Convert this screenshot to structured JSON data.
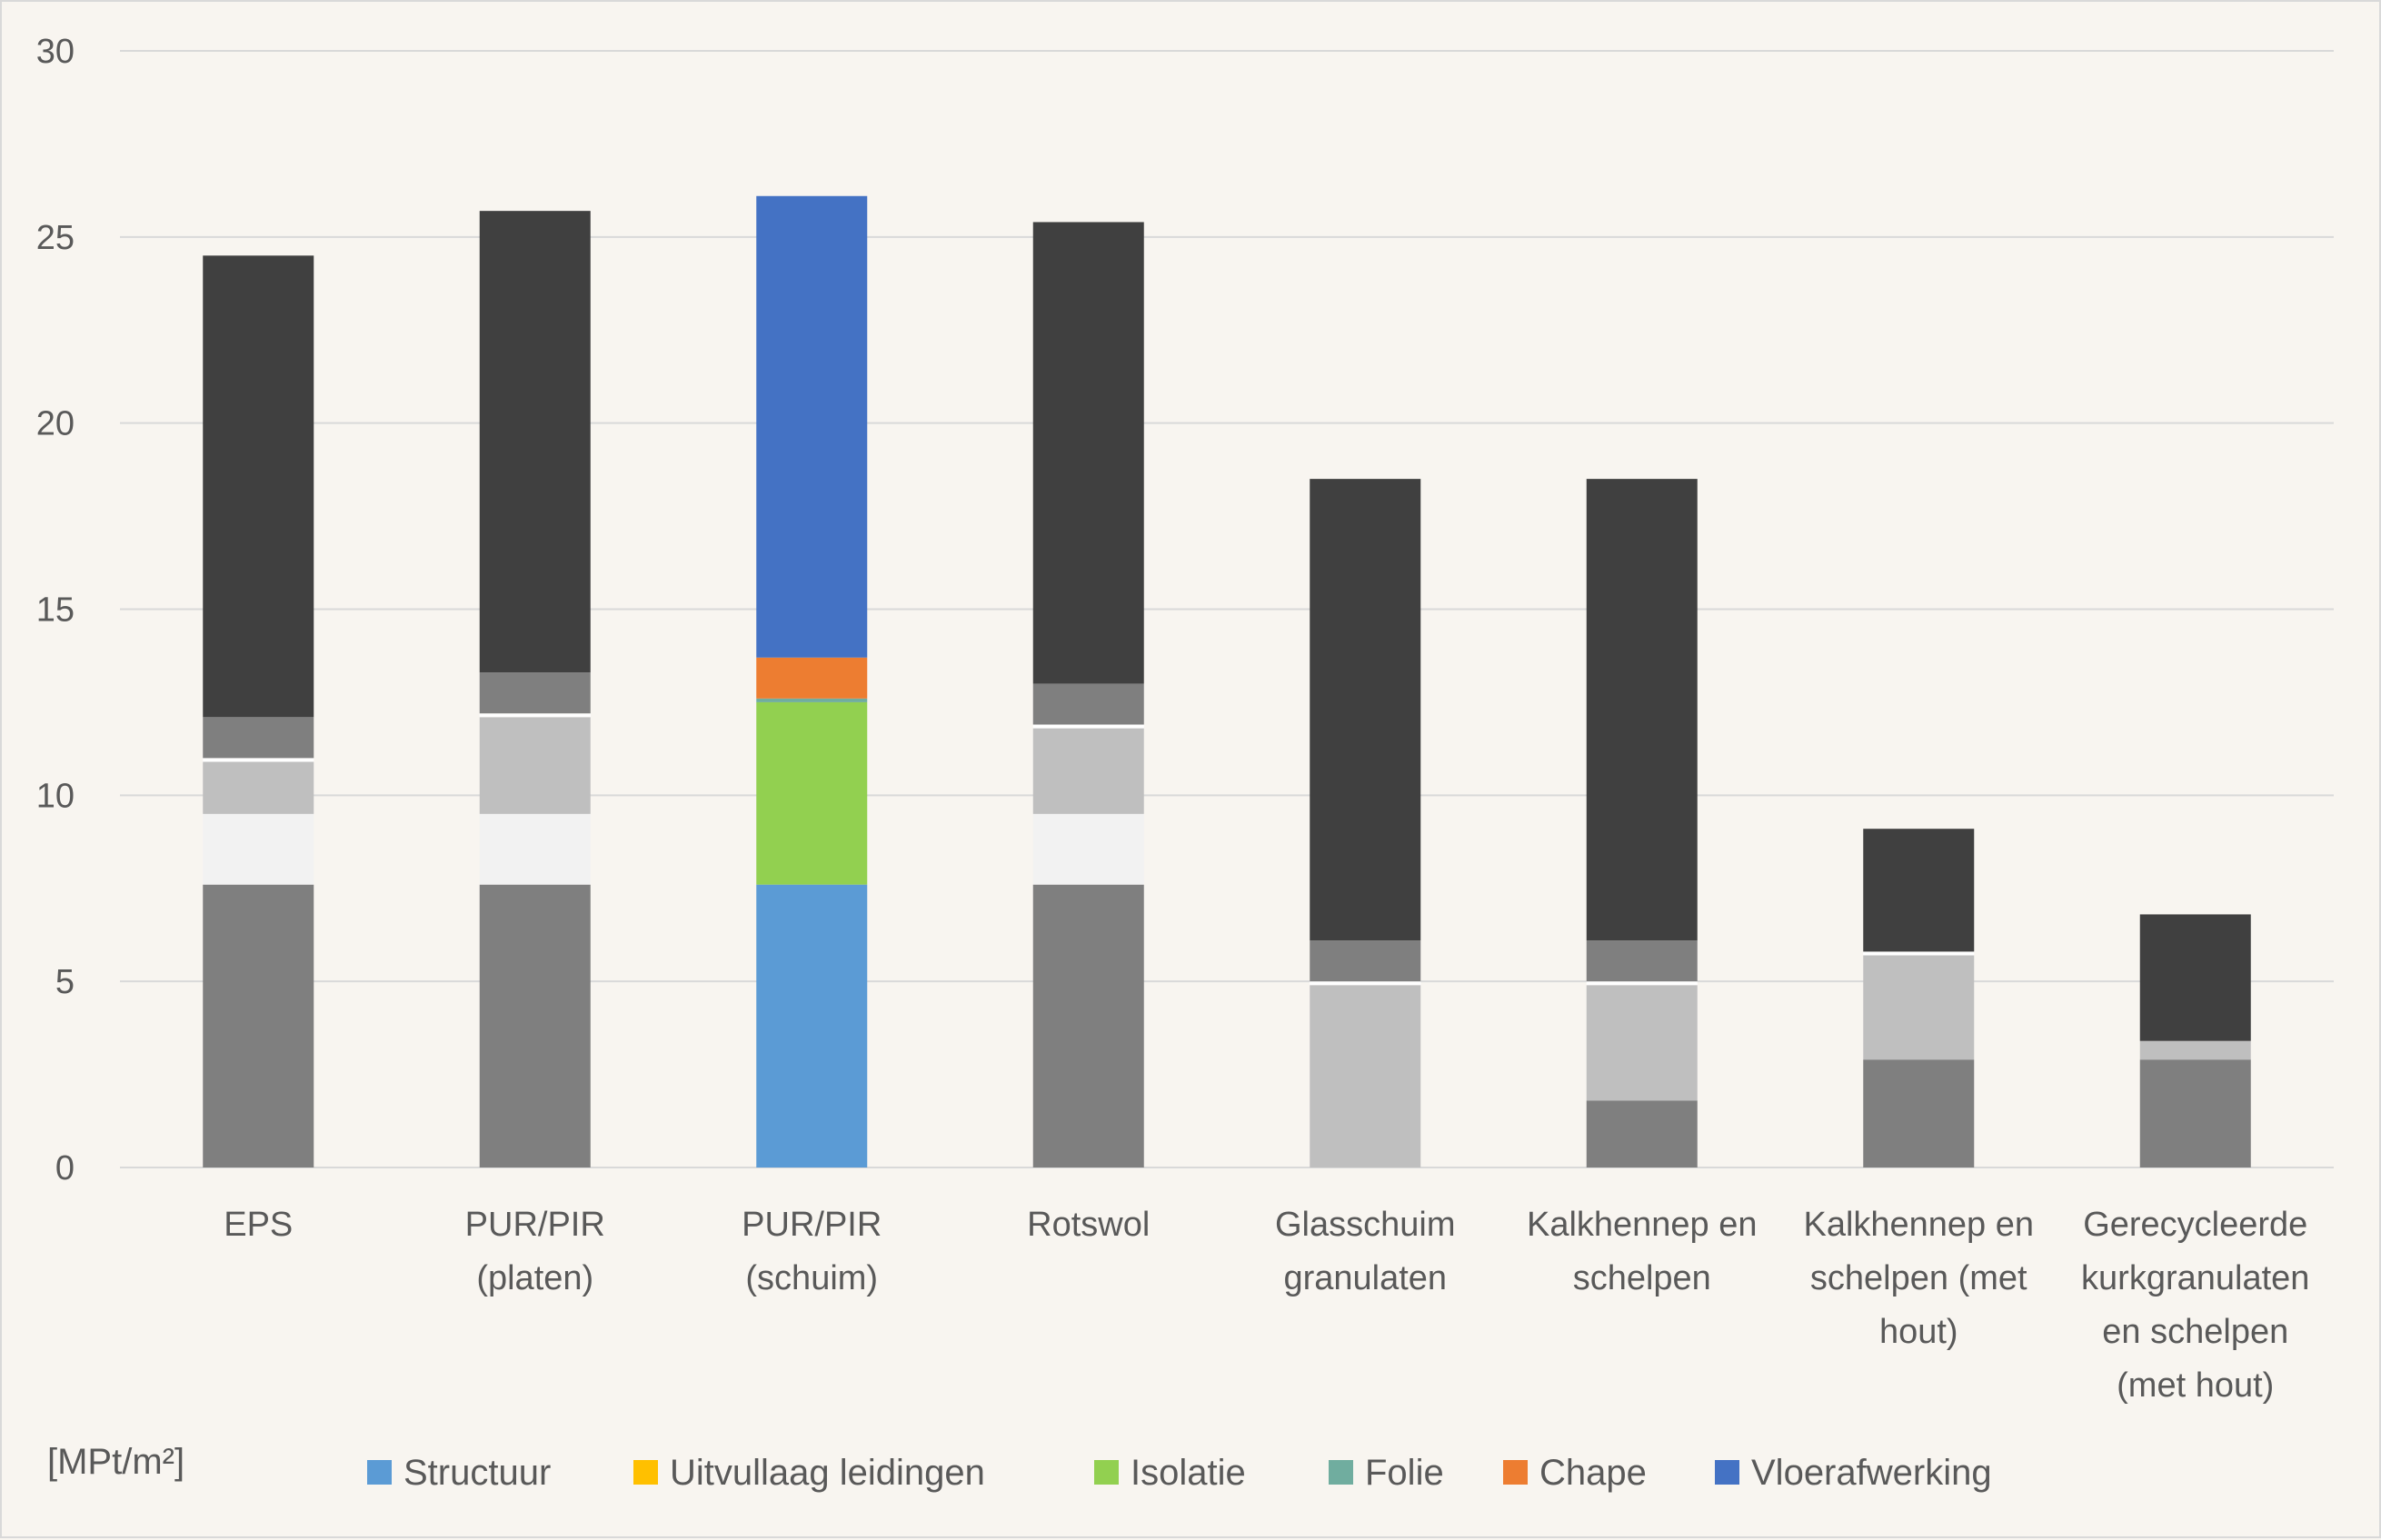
{
  "chart_data": {
    "type": "bar",
    "stacked": true,
    "unit_label": "[MPt/m²]",
    "ylim": [
      0,
      30
    ],
    "yticks": [
      0,
      5,
      10,
      15,
      20,
      25,
      30
    ],
    "grid": true,
    "legend_position": "bottom",
    "categories": [
      [
        "EPS"
      ],
      [
        "PUR/PIR",
        "(platen)"
      ],
      [
        "PUR/PIR",
        "(schuim)"
      ],
      [
        "Rotswol"
      ],
      [
        "Glasschuim",
        "granulaten"
      ],
      [
        "Kalkhennep en",
        "schelpen"
      ],
      [
        "Kalkhennep en",
        "schelpen (met",
        "hout)"
      ],
      [
        "Gerecycleerde",
        "kurkgranulaten",
        "en schelpen",
        "(met hout)"
      ]
    ],
    "highlighted_category_index": 2,
    "muted_colors": [
      "#7f7f7f",
      "#f2f2f2",
      "#bfbfbf",
      "#ffffff",
      "#7f7f7f",
      "#404040"
    ],
    "series": [
      {
        "name": "Structuur",
        "color": "#5b9bd5",
        "values": [
          7.6,
          7.6,
          7.6,
          7.6,
          0,
          1.8,
          2.9,
          2.9
        ]
      },
      {
        "name": "Uitvullaag leidingen",
        "color": "#ffc000",
        "values": [
          1.9,
          1.9,
          0,
          1.9,
          0,
          0,
          0,
          0
        ]
      },
      {
        "name": "Isolatie",
        "color": "#92d050",
        "values": [
          1.4,
          2.6,
          4.9,
          2.3,
          4.9,
          3.1,
          2.8,
          0.5
        ]
      },
      {
        "name": "Folie",
        "color": "#70ad9f",
        "values": [
          0.1,
          0.1,
          0.1,
          0.1,
          0.1,
          0.1,
          0.1,
          0
        ]
      },
      {
        "name": "Chape",
        "color": "#ed7d31",
        "values": [
          1.1,
          1.1,
          1.1,
          1.1,
          1.1,
          1.1,
          0,
          0
        ]
      },
      {
        "name": "Vloerafwerking",
        "color": "#4472c4",
        "values": [
          12.4,
          12.4,
          12.4,
          12.4,
          12.4,
          12.4,
          3.3,
          3.4
        ]
      }
    ]
  }
}
